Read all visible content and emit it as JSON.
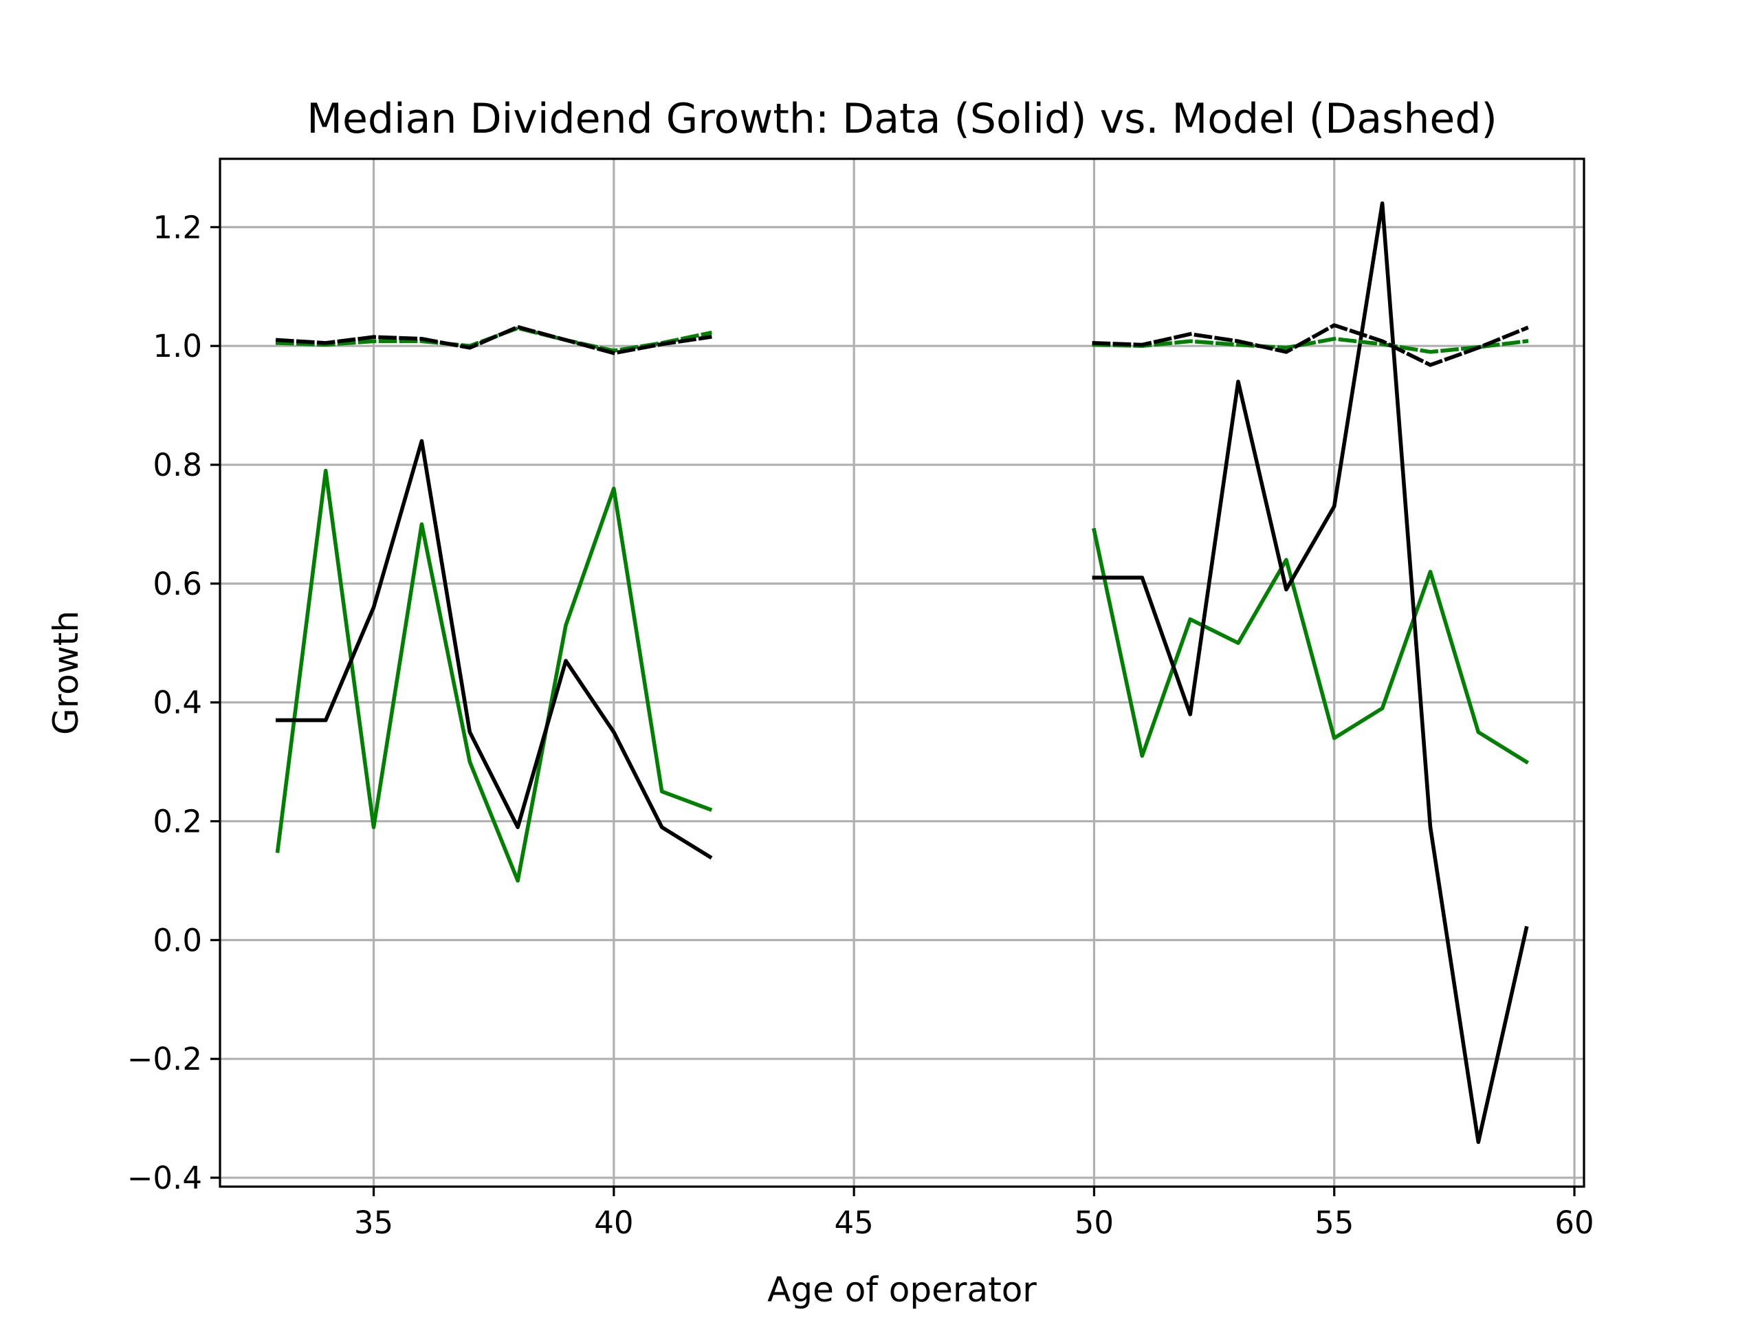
{
  "chart_data": {
    "type": "line",
    "title": "Median Dividend Growth: Data (Solid) vs. Model (Dashed)",
    "xlabel": "Age of operator",
    "ylabel": "Growth",
    "xlim": [
      31.8,
      60.2
    ],
    "ylim": [
      -0.415,
      1.315
    ],
    "xticks": [
      35,
      40,
      45,
      50,
      55,
      60
    ],
    "yticks": [
      -0.4,
      -0.2,
      0.0,
      0.2,
      0.4,
      0.6,
      0.8,
      1.0,
      1.2
    ],
    "ytick_labels": [
      "−0.4",
      "−0.2",
      "0.0",
      "0.2",
      "0.4",
      "0.6",
      "0.8",
      "1.0",
      "1.2"
    ],
    "grid": true,
    "colors": {
      "green": "#008000",
      "black": "#000000",
      "grid": "#b0b0b0"
    },
    "series": [
      {
        "color": "#008000",
        "style": "solid",
        "x": [
          33,
          34,
          35,
          36,
          37,
          38,
          39,
          40,
          41,
          42,
          null,
          50,
          51,
          52,
          53,
          54,
          55,
          56,
          57,
          58,
          59
        ],
        "y": [
          0.15,
          0.79,
          0.19,
          0.7,
          0.3,
          0.1,
          0.53,
          0.76,
          0.25,
          0.22,
          null,
          0.69,
          0.31,
          0.54,
          0.5,
          0.64,
          0.34,
          0.39,
          0.62,
          0.35,
          0.3
        ]
      },
      {
        "color": "#000000",
        "style": "solid",
        "x": [
          33,
          34,
          35,
          36,
          37,
          38,
          39,
          40,
          41,
          42,
          null,
          50,
          51,
          52,
          53,
          54,
          55,
          56,
          57,
          58,
          59
        ],
        "y": [
          0.37,
          0.37,
          0.56,
          0.84,
          0.35,
          0.19,
          0.47,
          0.35,
          0.19,
          0.14,
          null,
          0.61,
          0.61,
          0.38,
          0.94,
          0.59,
          0.73,
          1.24,
          0.19,
          -0.34,
          0.02
        ]
      },
      {
        "color": "#008000",
        "style": "dashed",
        "x": [
          33,
          34,
          35,
          36,
          37,
          38,
          39,
          40,
          41,
          42,
          null,
          50,
          51,
          52,
          53,
          54,
          55,
          56,
          57,
          58,
          59
        ],
        "y": [
          1.005,
          1.002,
          1.008,
          1.008,
          1.0,
          1.03,
          1.01,
          0.992,
          1.005,
          1.022,
          null,
          1.002,
          1.0,
          1.008,
          1.002,
          0.997,
          1.012,
          1.003,
          0.99,
          0.998,
          1.008
        ]
      },
      {
        "color": "#000000",
        "style": "dashed",
        "x": [
          33,
          34,
          35,
          36,
          37,
          38,
          39,
          40,
          41,
          42,
          null,
          50,
          51,
          52,
          53,
          54,
          55,
          56,
          57,
          58,
          59
        ],
        "y": [
          1.01,
          1.005,
          1.015,
          1.012,
          0.997,
          1.032,
          1.01,
          0.988,
          1.003,
          1.015,
          null,
          1.005,
          1.002,
          1.02,
          1.008,
          0.99,
          1.035,
          1.008,
          0.968,
          0.997,
          1.03
        ]
      }
    ]
  }
}
